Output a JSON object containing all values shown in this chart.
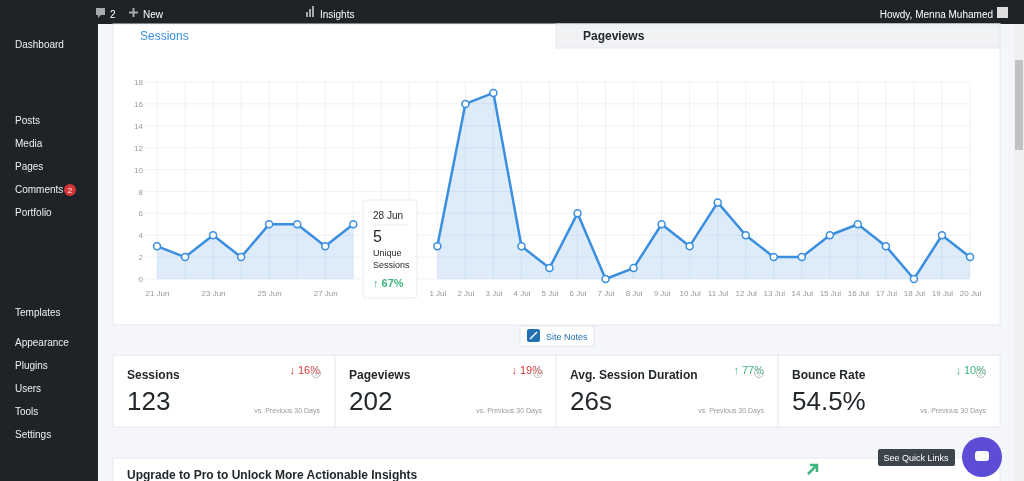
{
  "chart_data": {
    "type": "area",
    "categories": [
      "21 Jun",
      null,
      "23 Jun",
      null,
      "25 Jun",
      null,
      "27 Jun",
      null,
      null,
      null,
      "1 Jul",
      "2 Jul",
      "3 Jul",
      "4 Jul",
      "5 Jul",
      "6 Jul",
      "7 Jul",
      "8 Jul",
      "9 Jul",
      "10 Jul",
      "11 Jul",
      "12 Jul",
      "13 Jul",
      "14 Jul",
      "15 Jul",
      "16 Jul",
      "17 Jul",
      "18 Jul",
      "19 Jul",
      "20 Jul"
    ],
    "series": [
      {
        "color": "#3a8ee0",
        "values": [
          3,
          2,
          4,
          2,
          5,
          5,
          3,
          5,
          null,
          null,
          3,
          16,
          17,
          3,
          1,
          6,
          0,
          1,
          5,
          3,
          7,
          4,
          2,
          2,
          4,
          5,
          3,
          0,
          4,
          2
        ]
      }
    ],
    "ylim": [
      0,
      18
    ],
    "yticks": [
      0,
      2,
      4,
      6,
      8,
      10,
      12,
      14,
      16,
      18
    ],
    "grid": true,
    "marker": "circle",
    "line_style": "solid",
    "annotations": [
      "Sessions",
      "Pageviews",
      "28 Jun",
      "5",
      "Unique Sessions",
      "↑ 67%",
      "Site Notes",
      "Sessions",
      "123",
      "↓ 16%",
      "vs. Previous 30 Days",
      "Pageviews",
      "202",
      "↓ 19%",
      "vs. Previous 30 Days",
      "Avg. Session Duration",
      "26s",
      "↑ 77%",
      "vs. Previous 30 Days",
      "Bounce Rate",
      "54.5%",
      "↓ 10%",
      "vs. Previous 30 Days",
      "Upgrade to Pro to Unlock More Actionable Insights",
      "See Quick Links",
      "2",
      "New",
      "Insights",
      "Howdy, Menna Muhamed",
      "Dashboard",
      "Posts",
      "Media",
      "Pages",
      "Comments",
      "2",
      "Portfolio",
      "Templates",
      "Appearance",
      "Plugins",
      "Users",
      "Tools",
      "Settings"
    ]
  }
}
